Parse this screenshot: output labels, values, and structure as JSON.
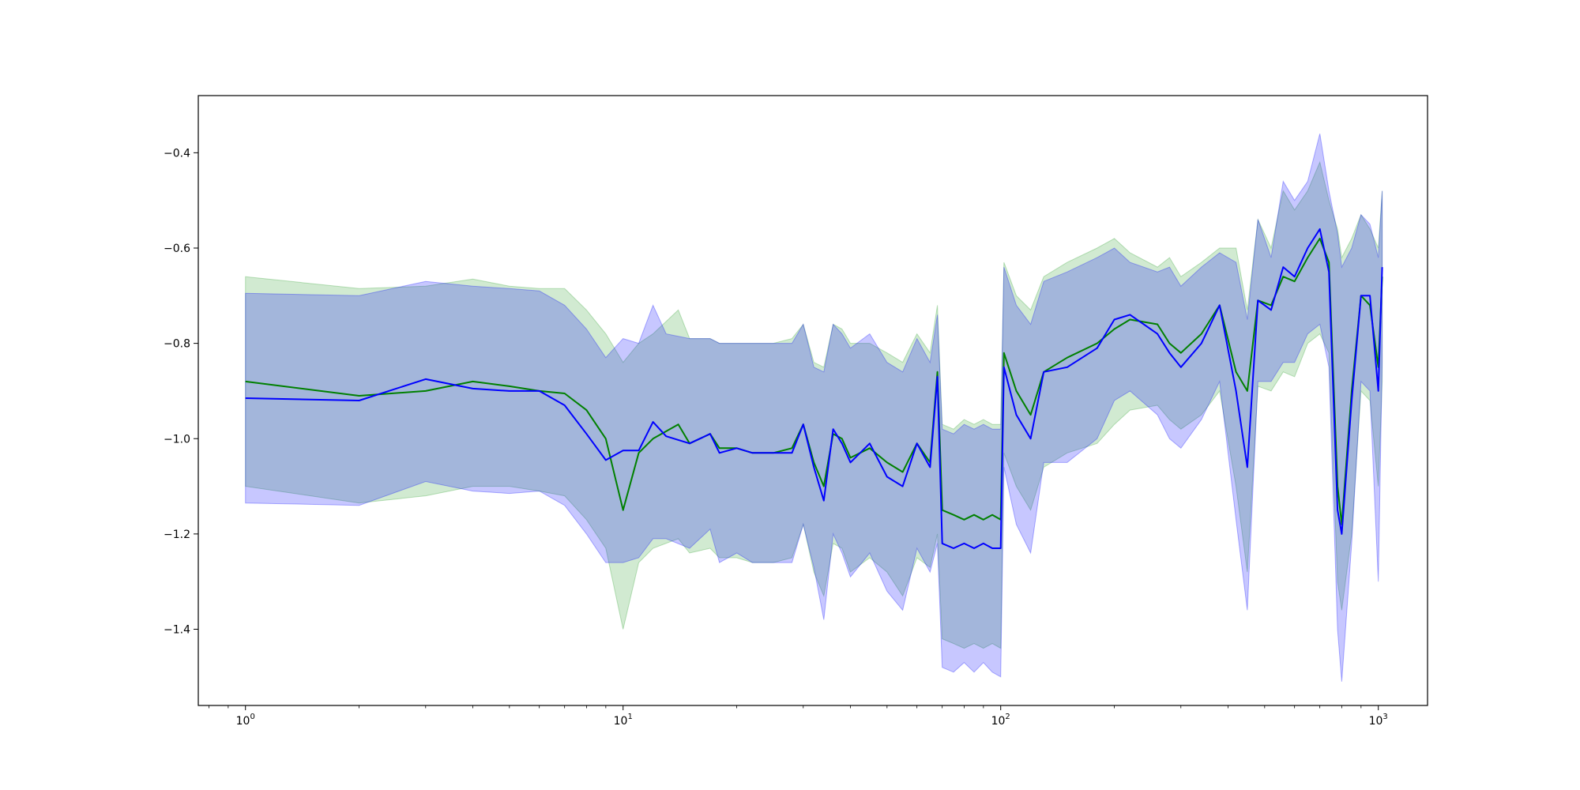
{
  "chart_data": {
    "type": "line",
    "title": "",
    "xlabel": "",
    "ylabel": "",
    "xscale": "log",
    "xlim": [
      0.75,
      1350
    ],
    "ylim": [
      -1.56,
      -0.28
    ],
    "grid": false,
    "legend": "none",
    "x_ticks": [
      {
        "value": 1,
        "base": "10",
        "exp": "0"
      },
      {
        "value": 10,
        "base": "10",
        "exp": "1"
      },
      {
        "value": 100,
        "base": "10",
        "exp": "2"
      },
      {
        "value": 1000,
        "base": "10",
        "exp": "3"
      }
    ],
    "y_ticks": [
      {
        "value": -0.4,
        "label": "−0.4"
      },
      {
        "value": -0.6,
        "label": "−0.6"
      },
      {
        "value": -0.8,
        "label": "−0.8"
      },
      {
        "value": -1.0,
        "label": "−1.0"
      },
      {
        "value": -1.2,
        "label": "−1.2"
      },
      {
        "value": -1.4,
        "label": "−1.4"
      }
    ],
    "series": [
      {
        "color": "#008000",
        "band_color": "#2ca02c",
        "x": [
          1,
          2,
          3,
          4,
          5,
          6,
          7,
          8,
          9,
          10,
          11,
          12,
          14,
          15,
          17,
          18,
          20,
          22,
          25,
          28,
          30,
          32,
          34,
          36,
          38,
          40,
          45,
          50,
          55,
          60,
          65,
          68,
          70,
          75,
          80,
          85,
          90,
          95,
          100,
          102,
          110,
          120,
          130,
          150,
          180,
          200,
          220,
          260,
          280,
          300,
          340,
          380,
          420,
          450,
          480,
          520,
          560,
          600,
          650,
          700,
          740,
          780,
          800,
          850,
          900,
          950,
          1000,
          1024
        ],
        "y": [
          -0.88,
          -0.91,
          -0.9,
          -0.88,
          -0.89,
          -0.9,
          -0.905,
          -0.94,
          -1.0,
          -1.15,
          -1.03,
          -1.0,
          -0.97,
          -1.01,
          -0.99,
          -1.02,
          -1.02,
          -1.03,
          -1.03,
          -1.02,
          -0.97,
          -1.05,
          -1.1,
          -0.99,
          -1.0,
          -1.04,
          -1.02,
          -1.05,
          -1.07,
          -1.01,
          -1.05,
          -0.86,
          -1.15,
          -1.16,
          -1.17,
          -1.16,
          -1.17,
          -1.16,
          -1.17,
          -0.82,
          -0.9,
          -0.95,
          -0.86,
          -0.83,
          -0.8,
          -0.77,
          -0.75,
          -0.76,
          -0.8,
          -0.82,
          -0.78,
          -0.72,
          -0.86,
          -0.9,
          -0.71,
          -0.72,
          -0.66,
          -0.67,
          -0.62,
          -0.58,
          -0.63,
          -1.1,
          -1.18,
          -0.9,
          -0.7,
          -0.72,
          -0.85,
          -0.66
        ],
        "upper": [
          -0.66,
          -0.685,
          -0.68,
          -0.665,
          -0.68,
          -0.685,
          -0.685,
          -0.73,
          -0.78,
          -0.84,
          -0.8,
          -0.78,
          -0.73,
          -0.79,
          -0.79,
          -0.8,
          -0.8,
          -0.8,
          -0.8,
          -0.79,
          -0.76,
          -0.84,
          -0.85,
          -0.76,
          -0.77,
          -0.8,
          -0.8,
          -0.82,
          -0.84,
          -0.78,
          -0.82,
          -0.72,
          -0.97,
          -0.98,
          -0.96,
          -0.97,
          -0.96,
          -0.97,
          -0.97,
          -0.63,
          -0.7,
          -0.73,
          -0.66,
          -0.63,
          -0.6,
          -0.58,
          -0.61,
          -0.64,
          -0.62,
          -0.66,
          -0.63,
          -0.6,
          -0.6,
          -0.73,
          -0.54,
          -0.6,
          -0.48,
          -0.52,
          -0.48,
          -0.42,
          -0.5,
          -0.56,
          -0.62,
          -0.58,
          -0.53,
          -0.56,
          -0.6,
          -0.48
        ],
        "lower": [
          -1.1,
          -1.135,
          -1.12,
          -1.1,
          -1.1,
          -1.11,
          -1.12,
          -1.17,
          -1.23,
          -1.4,
          -1.26,
          -1.23,
          -1.21,
          -1.24,
          -1.23,
          -1.25,
          -1.25,
          -1.26,
          -1.26,
          -1.25,
          -1.18,
          -1.28,
          -1.33,
          -1.22,
          -1.23,
          -1.28,
          -1.25,
          -1.28,
          -1.33,
          -1.25,
          -1.27,
          -1.2,
          -1.42,
          -1.43,
          -1.44,
          -1.43,
          -1.44,
          -1.43,
          -1.44,
          -1.03,
          -1.1,
          -1.15,
          -1.06,
          -1.03,
          -1.01,
          -0.97,
          -0.94,
          -0.93,
          -0.96,
          -0.98,
          -0.95,
          -0.9,
          -1.1,
          -1.28,
          -0.89,
          -0.9,
          -0.86,
          -0.87,
          -0.8,
          -0.78,
          -0.82,
          -1.3,
          -1.36,
          -1.2,
          -0.9,
          -0.92,
          -1.1,
          -0.88
        ]
      },
      {
        "color": "#0000ff",
        "band_color": "#0000ff",
        "x": [
          1,
          2,
          3,
          4,
          5,
          6,
          7,
          8,
          9,
          10,
          11,
          12,
          13,
          15,
          17,
          18,
          20,
          22,
          25,
          28,
          30,
          32,
          34,
          36,
          38,
          40,
          45,
          50,
          55,
          60,
          65,
          68,
          70,
          75,
          80,
          85,
          90,
          95,
          100,
          102,
          110,
          120,
          130,
          150,
          180,
          200,
          220,
          260,
          280,
          300,
          340,
          380,
          420,
          450,
          480,
          520,
          560,
          600,
          650,
          700,
          740,
          780,
          800,
          850,
          900,
          950,
          1000,
          1024
        ],
        "y": [
          -0.915,
          -0.92,
          -0.875,
          -0.895,
          -0.9,
          -0.9,
          -0.93,
          -0.99,
          -1.045,
          -1.025,
          -1.025,
          -0.965,
          -0.995,
          -1.01,
          -0.99,
          -1.03,
          -1.02,
          -1.03,
          -1.03,
          -1.03,
          -0.97,
          -1.06,
          -1.13,
          -0.98,
          -1.01,
          -1.05,
          -1.01,
          -1.08,
          -1.1,
          -1.01,
          -1.06,
          -0.87,
          -1.22,
          -1.23,
          -1.22,
          -1.23,
          -1.22,
          -1.23,
          -1.23,
          -0.85,
          -0.95,
          -1.0,
          -0.86,
          -0.85,
          -0.81,
          -0.75,
          -0.74,
          -0.78,
          -0.82,
          -0.85,
          -0.8,
          -0.72,
          -0.9,
          -1.06,
          -0.71,
          -0.73,
          -0.64,
          -0.66,
          -0.6,
          -0.56,
          -0.65,
          -1.15,
          -1.2,
          -0.92,
          -0.7,
          -0.7,
          -0.9,
          -0.64
        ],
        "upper": [
          -0.695,
          -0.7,
          -0.67,
          -0.68,
          -0.685,
          -0.69,
          -0.72,
          -0.77,
          -0.83,
          -0.79,
          -0.8,
          -0.72,
          -0.78,
          -0.79,
          -0.79,
          -0.8,
          -0.8,
          -0.8,
          -0.8,
          -0.8,
          -0.76,
          -0.85,
          -0.86,
          -0.76,
          -0.78,
          -0.81,
          -0.78,
          -0.84,
          -0.86,
          -0.79,
          -0.84,
          -0.74,
          -0.98,
          -0.99,
          -0.97,
          -0.98,
          -0.97,
          -0.98,
          -0.98,
          -0.64,
          -0.72,
          -0.76,
          -0.67,
          -0.65,
          -0.62,
          -0.6,
          -0.63,
          -0.65,
          -0.64,
          -0.68,
          -0.64,
          -0.61,
          -0.63,
          -0.75,
          -0.54,
          -0.62,
          -0.46,
          -0.5,
          -0.46,
          -0.36,
          -0.48,
          -0.57,
          -0.64,
          -0.6,
          -0.53,
          -0.55,
          -0.62,
          -0.48
        ],
        "lower": [
          -1.135,
          -1.14,
          -1.09,
          -1.11,
          -1.115,
          -1.11,
          -1.14,
          -1.2,
          -1.26,
          -1.26,
          -1.25,
          -1.21,
          -1.21,
          -1.23,
          -1.19,
          -1.26,
          -1.24,
          -1.26,
          -1.26,
          -1.26,
          -1.18,
          -1.27,
          -1.38,
          -1.2,
          -1.24,
          -1.29,
          -1.24,
          -1.32,
          -1.36,
          -1.23,
          -1.28,
          -1.22,
          -1.48,
          -1.49,
          -1.47,
          -1.49,
          -1.47,
          -1.49,
          -1.5,
          -1.06,
          -1.18,
          -1.24,
          -1.05,
          -1.05,
          -1.0,
          -0.92,
          -0.9,
          -0.95,
          -1.0,
          -1.02,
          -0.96,
          -0.88,
          -1.17,
          -1.36,
          -0.88,
          -0.88,
          -0.84,
          -0.84,
          -0.78,
          -0.76,
          -0.85,
          -1.4,
          -1.51,
          -1.22,
          -0.88,
          -0.9,
          -1.3,
          -0.84
        ]
      }
    ]
  }
}
